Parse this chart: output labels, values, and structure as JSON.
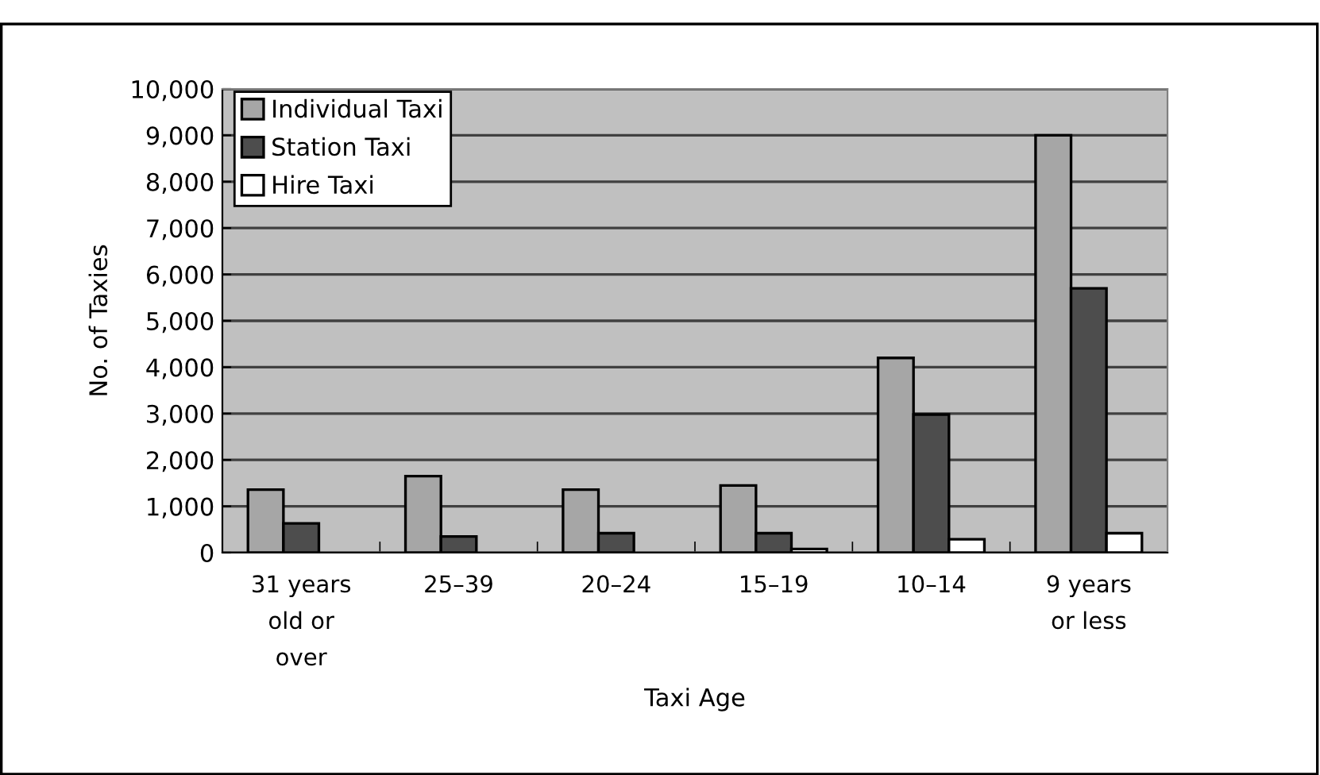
{
  "chart_data": {
    "type": "bar",
    "xlabel": "Taxi Age",
    "ylabel": "No. of Taxies",
    "categories": [
      "31 years\nold or\nover",
      "25–39",
      "20–24",
      "15–19",
      "10–14",
      "9 years\nor less"
    ],
    "series": [
      {
        "name": "Individual Taxi",
        "color": "#a6a6a6",
        "values": [
          1360,
          1650,
          1360,
          1450,
          4200,
          9000
        ]
      },
      {
        "name": "Station Taxi",
        "color": "#4d4d4d",
        "values": [
          630,
          350,
          420,
          420,
          2980,
          5700
        ]
      },
      {
        "name": "Hire Taxi",
        "color": "#ffffff",
        "values": [
          null,
          null,
          null,
          80,
          290,
          420
        ]
      }
    ],
    "ylim": [
      0,
      10000
    ],
    "yticks": [
      {
        "value": 0,
        "label": "0"
      },
      {
        "value": 1000,
        "label": "1,000"
      },
      {
        "value": 2000,
        "label": "2,000"
      },
      {
        "value": 3000,
        "label": "3,000"
      },
      {
        "value": 4000,
        "label": "4,000"
      },
      {
        "value": 5000,
        "label": "5,000"
      },
      {
        "value": 6000,
        "label": "6,000"
      },
      {
        "value": 7000,
        "label": "7,000"
      },
      {
        "value": 8000,
        "label": "8,000"
      },
      {
        "value": 9000,
        "label": "9,000"
      },
      {
        "value": 10000,
        "label": "10,000"
      }
    ],
    "grid": "y",
    "legend": "top left"
  }
}
